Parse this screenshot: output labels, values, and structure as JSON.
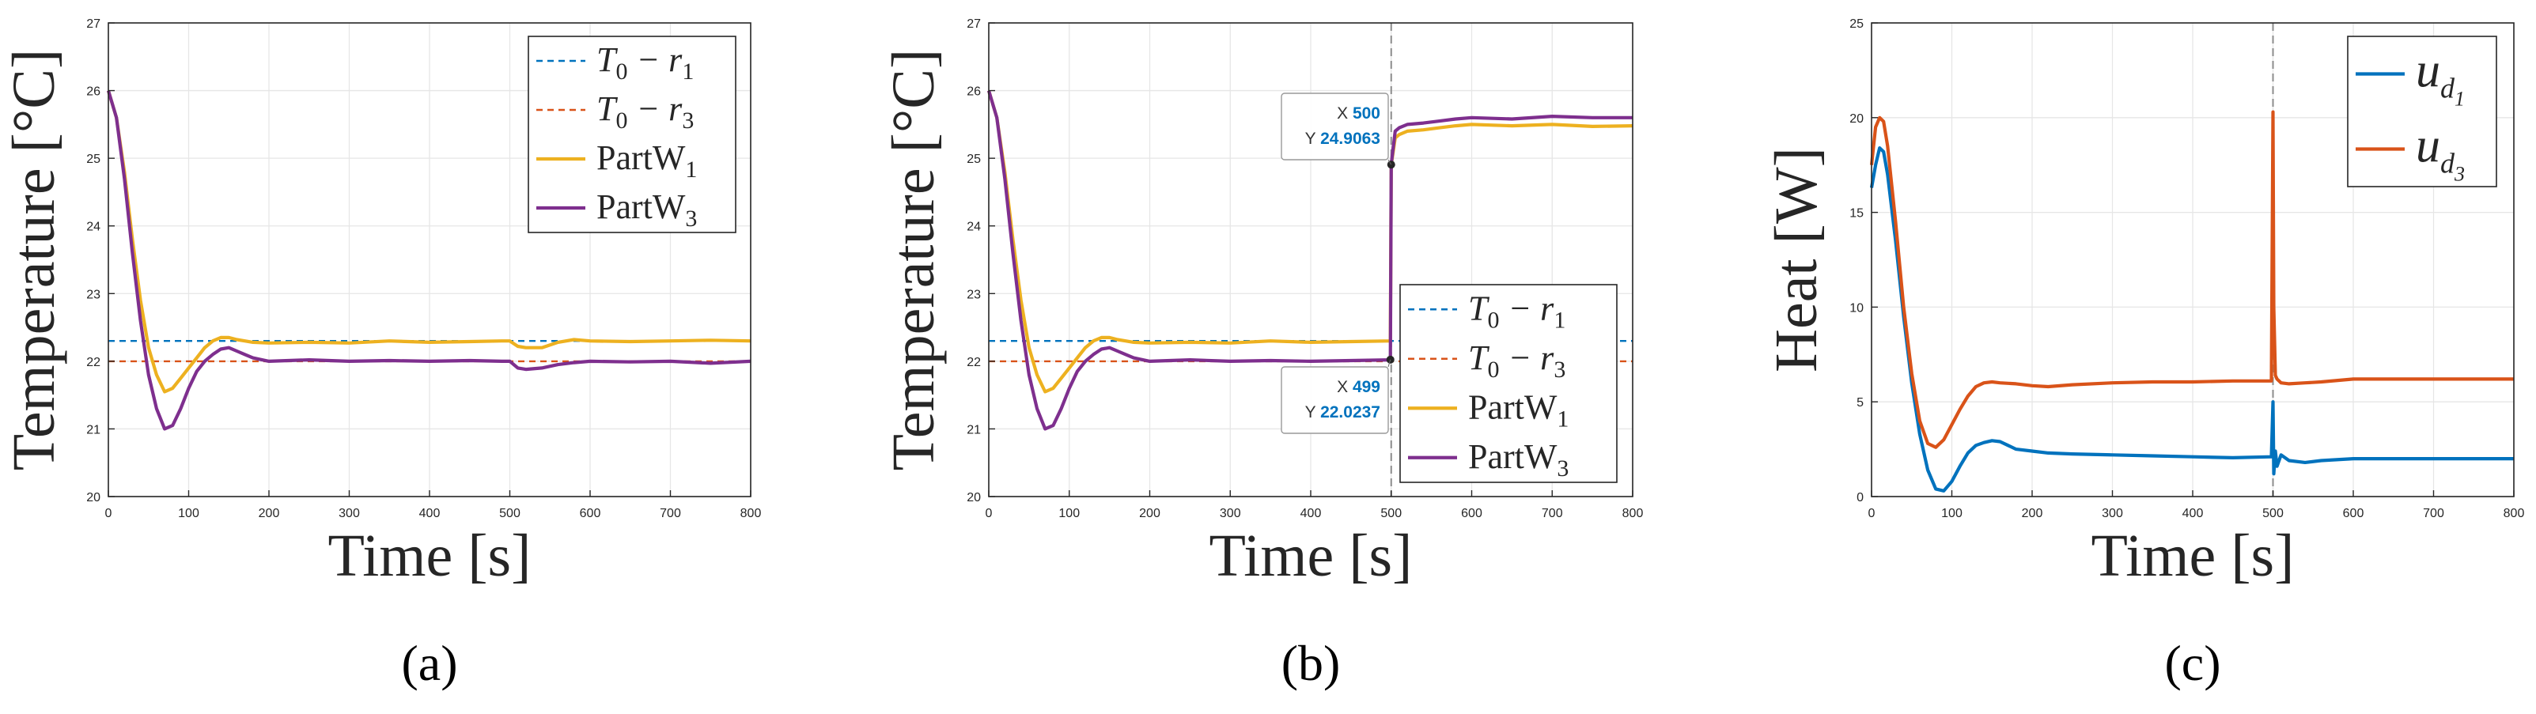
{
  "chart_data": [
    {
      "id": "a",
      "type": "line",
      "panel_label": "(a)",
      "xlabel": "Time [s]",
      "ylabel": "Temperature [°C]",
      "xlim": [
        0,
        800
      ],
      "ylim": [
        20,
        27
      ],
      "xticks": [
        "0",
        "100",
        "200",
        "300",
        "400",
        "500",
        "600",
        "700",
        "800"
      ],
      "yticks": [
        "20",
        "21",
        "22",
        "23",
        "24",
        "25",
        "26",
        "27"
      ],
      "grid": true,
      "legend_position": "top-right",
      "series": [
        {
          "name": "T_0 - r_1",
          "legend_main": "T",
          "legend_parts": [
            "0",
            " − r",
            "1"
          ],
          "style": "dashed",
          "color": "#0072BD",
          "x": [
            0,
            800
          ],
          "y": [
            22.3,
            22.3
          ]
        },
        {
          "name": "T_0 - r_3",
          "legend_main": "T",
          "legend_parts": [
            "0",
            " − r",
            "3"
          ],
          "style": "dashed",
          "color": "#D95319",
          "x": [
            0,
            800
          ],
          "y": [
            22.0,
            22.0
          ]
        },
        {
          "name": "PartW_1",
          "legend_main": "PartW",
          "legend_parts": [
            "1"
          ],
          "style": "solid",
          "color": "#EDB120",
          "x": [
            0,
            10,
            20,
            30,
            40,
            50,
            60,
            70,
            80,
            90,
            100,
            110,
            120,
            130,
            140,
            150,
            160,
            170,
            180,
            200,
            250,
            300,
            350,
            400,
            450,
            490,
            500,
            510,
            520,
            540,
            560,
            580,
            600,
            650,
            700,
            750,
            800
          ],
          "y": [
            26.0,
            25.6,
            24.8,
            23.8,
            22.9,
            22.2,
            21.8,
            21.55,
            21.6,
            21.75,
            21.9,
            22.05,
            22.2,
            22.3,
            22.35,
            22.35,
            22.32,
            22.3,
            22.28,
            22.27,
            22.28,
            22.27,
            22.3,
            22.28,
            22.29,
            22.3,
            22.3,
            22.22,
            22.2,
            22.2,
            22.28,
            22.32,
            22.3,
            22.29,
            22.3,
            22.31,
            22.3
          ]
        },
        {
          "name": "PartW_3",
          "legend_main": "PartW",
          "legend_parts": [
            "3"
          ],
          "style": "solid",
          "color": "#7E2F8E",
          "x": [
            0,
            10,
            20,
            30,
            40,
            50,
            60,
            70,
            80,
            90,
            100,
            110,
            120,
            130,
            140,
            150,
            160,
            170,
            180,
            200,
            250,
            300,
            350,
            400,
            450,
            490,
            500,
            510,
            520,
            540,
            560,
            580,
            600,
            650,
            700,
            750,
            800
          ],
          "y": [
            26.0,
            25.6,
            24.7,
            23.6,
            22.6,
            21.8,
            21.3,
            21.0,
            21.05,
            21.3,
            21.6,
            21.85,
            22.0,
            22.1,
            22.18,
            22.2,
            22.15,
            22.1,
            22.05,
            22.0,
            22.02,
            22.0,
            22.01,
            22.0,
            22.01,
            22.0,
            22.0,
            21.9,
            21.88,
            21.9,
            21.95,
            21.98,
            22.0,
            21.99,
            22.0,
            21.97,
            22.0
          ]
        }
      ]
    },
    {
      "id": "b",
      "type": "line",
      "panel_label": "(b)",
      "xlabel": "Time [s]",
      "ylabel": "Temperature [°C]",
      "xlim": [
        0,
        800
      ],
      "ylim": [
        20,
        27
      ],
      "xticks": [
        "0",
        "100",
        "200",
        "300",
        "400",
        "500",
        "600",
        "700",
        "800"
      ],
      "yticks": [
        "20",
        "21",
        "22",
        "23",
        "24",
        "25",
        "26",
        "27"
      ],
      "grid": true,
      "legend_position": "bottom-right",
      "vline_x": 500,
      "datatips": [
        {
          "x": 500,
          "y": 24.9063,
          "x_label": "X",
          "y_label": "Y",
          "x_text": "500",
          "y_text": "24.9063"
        },
        {
          "x": 499,
          "y": 22.0237,
          "x_label": "X",
          "y_label": "Y",
          "x_text": "499",
          "y_text": "22.0237"
        }
      ],
      "series": [
        {
          "name": "T_0 - r_1",
          "legend_main": "T",
          "legend_parts": [
            "0",
            " − r",
            "1"
          ],
          "style": "dashed",
          "color": "#0072BD",
          "x": [
            0,
            800
          ],
          "y": [
            22.3,
            22.3
          ]
        },
        {
          "name": "T_0 - r_3",
          "legend_main": "T",
          "legend_parts": [
            "0",
            " − r",
            "3"
          ],
          "style": "dashed",
          "color": "#D95319",
          "x": [
            0,
            800
          ],
          "y": [
            22.0,
            22.0
          ]
        },
        {
          "name": "PartW_1",
          "legend_main": "PartW",
          "legend_parts": [
            "1"
          ],
          "style": "solid",
          "color": "#EDB120",
          "x": [
            0,
            10,
            20,
            30,
            40,
            50,
            60,
            70,
            80,
            90,
            100,
            110,
            120,
            130,
            140,
            150,
            160,
            170,
            180,
            200,
            250,
            300,
            350,
            400,
            450,
            499,
            500,
            505,
            510,
            520,
            540,
            560,
            580,
            600,
            650,
            700,
            750,
            800
          ],
          "y": [
            26.0,
            25.6,
            24.8,
            23.8,
            22.9,
            22.2,
            21.8,
            21.55,
            21.6,
            21.75,
            21.9,
            22.05,
            22.2,
            22.3,
            22.35,
            22.35,
            22.32,
            22.3,
            22.28,
            22.27,
            22.28,
            22.27,
            22.3,
            22.28,
            22.29,
            22.3,
            24.9,
            25.3,
            25.35,
            25.4,
            25.42,
            25.45,
            25.48,
            25.5,
            25.48,
            25.5,
            25.47,
            25.48
          ]
        },
        {
          "name": "PartW_3",
          "legend_main": "PartW",
          "legend_parts": [
            "3"
          ],
          "style": "solid",
          "color": "#7E2F8E",
          "x": [
            0,
            10,
            20,
            30,
            40,
            50,
            60,
            70,
            80,
            90,
            100,
            110,
            120,
            130,
            140,
            150,
            160,
            170,
            180,
            200,
            250,
            300,
            350,
            400,
            450,
            499,
            500,
            505,
            510,
            520,
            540,
            560,
            580,
            600,
            650,
            700,
            750,
            800
          ],
          "y": [
            26.0,
            25.6,
            24.7,
            23.6,
            22.6,
            21.8,
            21.3,
            21.0,
            21.05,
            21.3,
            21.6,
            21.85,
            22.0,
            22.1,
            22.18,
            22.2,
            22.15,
            22.1,
            22.05,
            22.0,
            22.02,
            22.0,
            22.01,
            22.0,
            22.01,
            22.02,
            24.91,
            25.4,
            25.45,
            25.5,
            25.52,
            25.55,
            25.58,
            25.6,
            25.58,
            25.62,
            25.6,
            25.6
          ]
        }
      ]
    },
    {
      "id": "c",
      "type": "line",
      "panel_label": "(c)",
      "xlabel": "Time [s]",
      "ylabel": "Heat [W]",
      "xlim": [
        0,
        800
      ],
      "ylim": [
        0,
        25
      ],
      "xticks": [
        "0",
        "100",
        "200",
        "300",
        "400",
        "500",
        "600",
        "700",
        "800"
      ],
      "yticks": [
        "0",
        "5",
        "10",
        "15",
        "20",
        "25"
      ],
      "grid": true,
      "legend_position": "top-right",
      "vline_x": 500,
      "series": [
        {
          "name": "u_d1",
          "legend_main": "u",
          "legend_parts": [
            "d",
            "1"
          ],
          "style": "solid",
          "color": "#0072BD",
          "x": [
            0,
            5,
            10,
            15,
            20,
            30,
            40,
            50,
            60,
            70,
            80,
            90,
            100,
            110,
            120,
            130,
            140,
            150,
            160,
            170,
            180,
            200,
            220,
            250,
            300,
            350,
            400,
            450,
            498,
            500,
            501,
            503,
            505,
            510,
            520,
            540,
            560,
            600,
            650,
            700,
            750,
            800
          ],
          "y": [
            16.3,
            17.5,
            18.4,
            18.2,
            17.0,
            13.5,
            9.5,
            6.0,
            3.3,
            1.4,
            0.4,
            0.3,
            0.8,
            1.6,
            2.3,
            2.7,
            2.85,
            2.95,
            2.9,
            2.7,
            2.5,
            2.4,
            2.3,
            2.25,
            2.2,
            2.15,
            2.1,
            2.05,
            2.1,
            5.0,
            1.2,
            2.4,
            1.6,
            2.2,
            1.9,
            1.8,
            1.9,
            2.0,
            2.0,
            2.0,
            2.0,
            2.0
          ]
        },
        {
          "name": "u_d3",
          "legend_main": "u",
          "legend_parts": [
            "d",
            "3"
          ],
          "style": "solid",
          "color": "#D95319",
          "x": [
            0,
            5,
            10,
            15,
            20,
            30,
            40,
            50,
            60,
            70,
            80,
            90,
            100,
            110,
            120,
            130,
            140,
            150,
            160,
            180,
            200,
            220,
            250,
            300,
            350,
            400,
            450,
            498,
            500,
            501,
            503,
            505,
            510,
            520,
            540,
            560,
            600,
            650,
            700,
            750,
            800
          ],
          "y": [
            17.5,
            19.5,
            20.0,
            19.8,
            18.5,
            14.5,
            10.0,
            6.5,
            4.0,
            2.8,
            2.6,
            3.0,
            3.8,
            4.6,
            5.3,
            5.8,
            6.0,
            6.05,
            6.0,
            5.95,
            5.85,
            5.8,
            5.9,
            6.0,
            6.05,
            6.05,
            6.1,
            6.1,
            20.3,
            10.0,
            6.4,
            6.2,
            6.0,
            5.95,
            6.0,
            6.05,
            6.2,
            6.2,
            6.2,
            6.2,
            6.2
          ]
        }
      ]
    }
  ]
}
